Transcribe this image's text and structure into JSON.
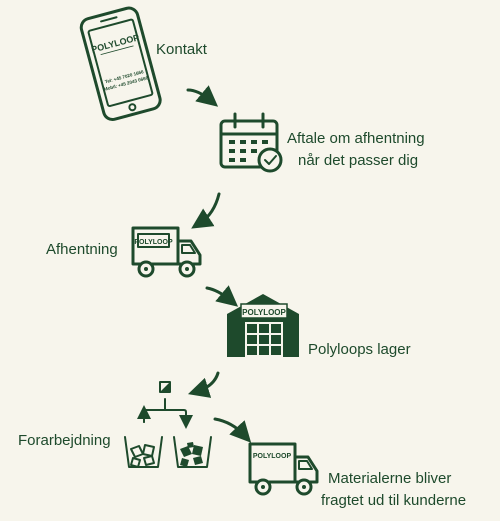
{
  "steps": {
    "kontakt": {
      "label": "Kontakt"
    },
    "aftale": {
      "line1": "Aftale om afhentning",
      "line2": "når det passer dig"
    },
    "afhentning": {
      "label": "Afhentning"
    },
    "lager": {
      "label": "Polyloops lager"
    },
    "forarbejdning": {
      "label": "Forarbejdning"
    },
    "materialer": {
      "line1": "Materialerne bliver",
      "line2": "fragtet ud til kunderne"
    }
  },
  "brand": {
    "logo": "POLYLOOP"
  },
  "phone": {
    "tel": "Tel: +45 7020 1666",
    "mobil": "Mobil: +45 2043 0666"
  },
  "colors": {
    "primary": "#1e4a2c",
    "background": "#f7f5ec"
  }
}
